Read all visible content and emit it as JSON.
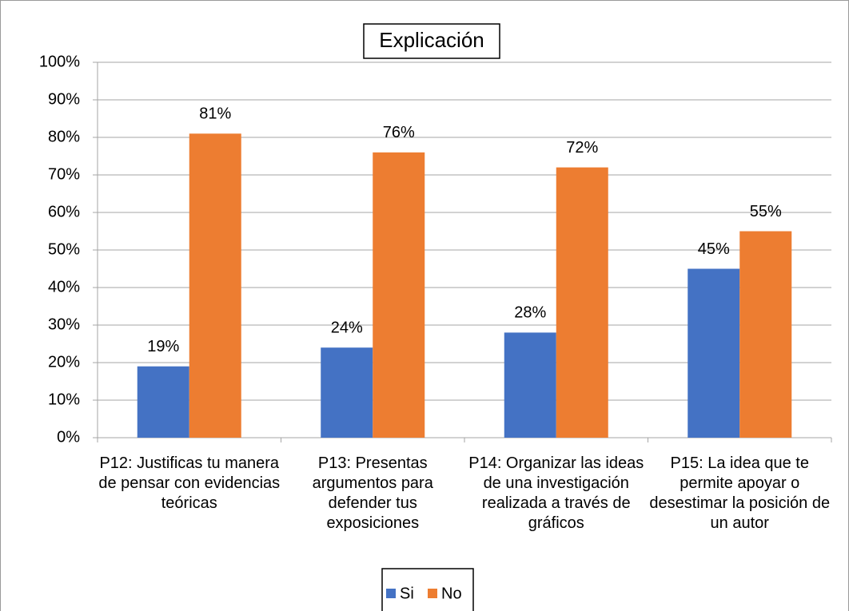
{
  "chart_data": {
    "type": "bar",
    "title": "Explicación",
    "categories": [
      "P12: Justificas tu manera de pensar con evidencias teóricas",
      "P13: Presentas argumentos para defender tus exposiciones",
      "P14: Organizar las ideas de una investigación realizada a través de gráficos",
      "P15: La idea que te permite apoyar o desestimar la posición de un autor"
    ],
    "series": [
      {
        "name": "Si",
        "color": "#4472c4",
        "values": [
          19,
          24,
          28,
          45
        ],
        "value_labels": [
          "19%",
          "24%",
          "28%",
          "45%"
        ]
      },
      {
        "name": "No",
        "color": "#ed7d31",
        "values": [
          81,
          76,
          72,
          55
        ],
        "value_labels": [
          "81%",
          "76%",
          "72%",
          "55%"
        ]
      }
    ],
    "ylim": [
      0,
      100
    ],
    "yticks": [
      {
        "value": 0,
        "label": "0%"
      },
      {
        "value": 10,
        "label": "10%"
      },
      {
        "value": 20,
        "label": "20%"
      },
      {
        "value": 30,
        "label": "30%"
      },
      {
        "value": 40,
        "label": "40%"
      },
      {
        "value": 50,
        "label": "50%"
      },
      {
        "value": 60,
        "label": "60%"
      },
      {
        "value": 70,
        "label": "70%"
      },
      {
        "value": 80,
        "label": "80%"
      },
      {
        "value": 90,
        "label": "90%"
      },
      {
        "value": 100,
        "label": "100%"
      }
    ],
    "grid": true,
    "legend": "bottom"
  }
}
